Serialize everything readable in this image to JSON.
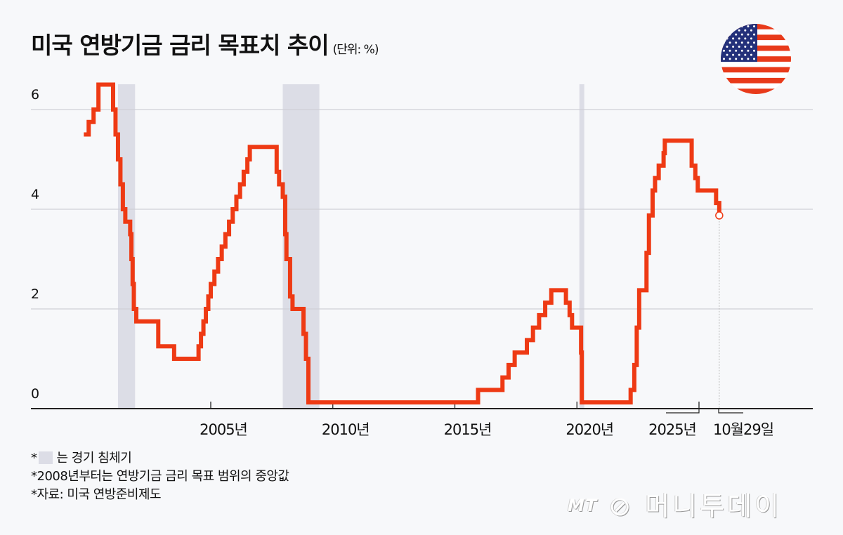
{
  "header": {
    "title": "미국 연방기금 금리 목표치 추이",
    "unit": "(단위: %)",
    "flag_icon": "us-flag-icon"
  },
  "notes": {
    "recession_prefix": "*",
    "recession_label": "는 경기 침체기",
    "median_note": "*2008년부터는 연방기금 금리 목표 범위의 중앙값",
    "source": "*자료: 미국 연방준비제도"
  },
  "logo": {
    "mt": "MT",
    "name": "머니투데이"
  },
  "colors": {
    "line": "#ee3a14",
    "recession": "#dcdde6",
    "grid": "#cfd0d6",
    "axis": "#222222",
    "background": "#f7f8fa"
  },
  "chart_data": {
    "type": "line",
    "step": true,
    "title": "미국 연방기금 금리 목표치 추이",
    "subtitle": "(단위: %)",
    "xlabel": "",
    "ylabel": "%",
    "ylim": [
      0,
      6.5
    ],
    "yticks": [
      0,
      2,
      4,
      6
    ],
    "xticks": [
      "2005년",
      "2010년",
      "2015년",
      "2020년",
      "2025년"
    ],
    "xtick_years": [
      2005,
      2010,
      2015,
      2020,
      2025
    ],
    "end_label": "10월29일",
    "grid": true,
    "recessions": [
      [
        2001.2,
        2001.9
      ],
      [
        2007.95,
        2009.45
      ],
      [
        2020.1,
        2020.3
      ]
    ],
    "series": [
      {
        "name": "연방기금 금리 목표치",
        "points": [
          [
            1999.8,
            5.5
          ],
          [
            2000.0,
            5.75
          ],
          [
            2000.2,
            6.0
          ],
          [
            2000.4,
            6.5
          ],
          [
            2001.0,
            6.0
          ],
          [
            2001.1,
            5.5
          ],
          [
            2001.2,
            5.0
          ],
          [
            2001.3,
            4.5
          ],
          [
            2001.4,
            4.0
          ],
          [
            2001.5,
            3.75
          ],
          [
            2001.7,
            3.5
          ],
          [
            2001.75,
            3.0
          ],
          [
            2001.8,
            2.5
          ],
          [
            2001.85,
            2.0
          ],
          [
            2001.95,
            1.75
          ],
          [
            2002.85,
            1.25
          ],
          [
            2003.5,
            1.0
          ],
          [
            2004.5,
            1.25
          ],
          [
            2004.6,
            1.5
          ],
          [
            2004.7,
            1.75
          ],
          [
            2004.8,
            2.0
          ],
          [
            2004.9,
            2.25
          ],
          [
            2005.0,
            2.5
          ],
          [
            2005.15,
            2.75
          ],
          [
            2005.3,
            3.0
          ],
          [
            2005.45,
            3.25
          ],
          [
            2005.6,
            3.5
          ],
          [
            2005.75,
            3.75
          ],
          [
            2005.9,
            4.0
          ],
          [
            2006.05,
            4.25
          ],
          [
            2006.2,
            4.5
          ],
          [
            2006.35,
            4.75
          ],
          [
            2006.5,
            5.0
          ],
          [
            2006.6,
            5.25
          ],
          [
            2007.7,
            4.75
          ],
          [
            2007.8,
            4.5
          ],
          [
            2007.95,
            4.25
          ],
          [
            2008.05,
            3.5
          ],
          [
            2008.1,
            3.0
          ],
          [
            2008.25,
            2.25
          ],
          [
            2008.35,
            2.0
          ],
          [
            2008.8,
            1.5
          ],
          [
            2008.9,
            1.0
          ],
          [
            2009.0,
            0.125
          ],
          [
            2015.95,
            0.375
          ],
          [
            2016.95,
            0.625
          ],
          [
            2017.2,
            0.875
          ],
          [
            2017.45,
            1.125
          ],
          [
            2017.95,
            1.375
          ],
          [
            2018.2,
            1.625
          ],
          [
            2018.45,
            1.875
          ],
          [
            2018.7,
            2.125
          ],
          [
            2018.95,
            2.375
          ],
          [
            2019.55,
            2.125
          ],
          [
            2019.7,
            1.875
          ],
          [
            2019.8,
            1.625
          ],
          [
            2020.17,
            1.125
          ],
          [
            2020.2,
            0.125
          ],
          [
            2022.2,
            0.375
          ],
          [
            2022.35,
            0.875
          ],
          [
            2022.45,
            1.625
          ],
          [
            2022.55,
            2.375
          ],
          [
            2022.85,
            3.125
          ],
          [
            2022.95,
            3.875
          ],
          [
            2023.1,
            4.375
          ],
          [
            2023.2,
            4.625
          ],
          [
            2023.35,
            4.875
          ],
          [
            2023.55,
            5.125
          ],
          [
            2023.6,
            5.375
          ],
          [
            2024.7,
            4.875
          ],
          [
            2024.85,
            4.625
          ],
          [
            2024.95,
            4.375
          ],
          [
            2025.7,
            4.125
          ],
          [
            2025.83,
            3.875
          ]
        ],
        "last_value": 3.875
      }
    ]
  }
}
